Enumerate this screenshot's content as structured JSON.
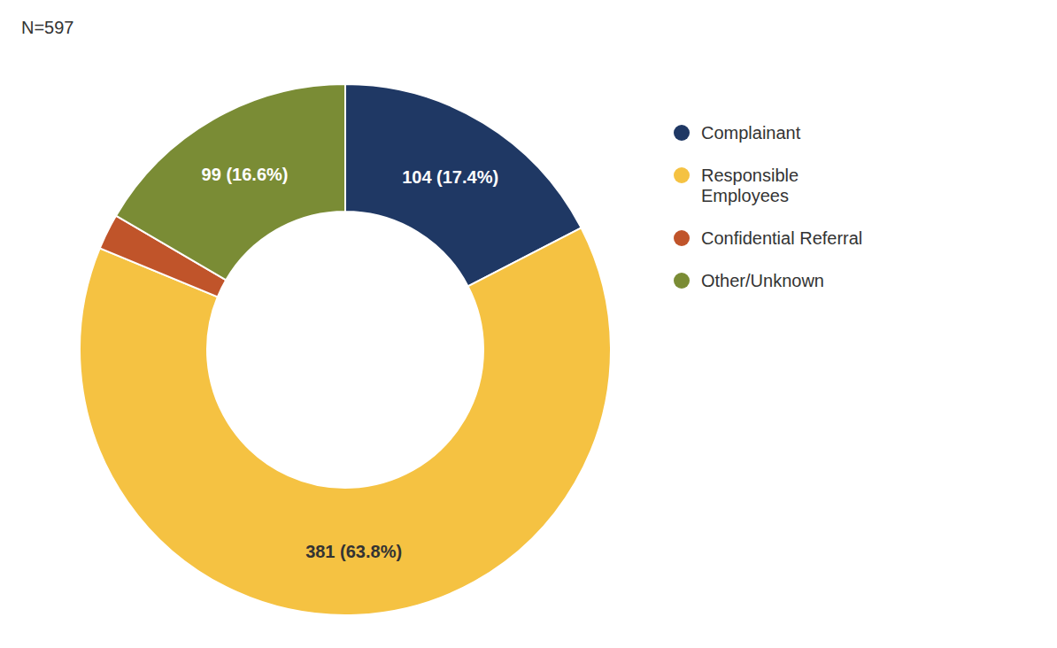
{
  "chart_data": {
    "type": "pie",
    "title": "N=597",
    "categories": [
      "Complainant",
      "Responsible\nEmployees",
      "Confidential Referral",
      "Other/Unknown"
    ],
    "values": [
      104,
      381,
      13,
      99
    ],
    "value_labels": [
      "104 (17.4%)",
      "381 (63.8%)",
      null,
      "99 (16.6%)"
    ],
    "colors": [
      "#1f3864",
      "#f5c242",
      "#c0542a",
      "#7a8c35"
    ],
    "data_labels": true,
    "legend": "right"
  }
}
